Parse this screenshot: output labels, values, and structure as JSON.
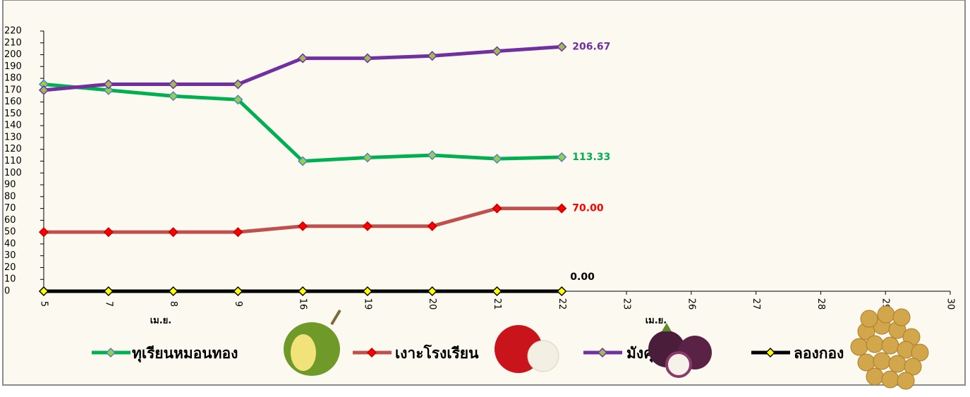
{
  "chart_data": {
    "type": "line",
    "categories": [
      "5",
      "7",
      "8",
      "9",
      "16",
      "19",
      "20",
      "21",
      "22",
      "23",
      "26",
      "27",
      "28",
      "29",
      "30"
    ],
    "x_group_labels": [
      "เม.ย.",
      "เม.ย."
    ],
    "series": [
      {
        "name": "ทุเรียนหมอนทอง",
        "color": "#00b050",
        "marker_color": "#92d050",
        "marker_stroke": "#4f81bd",
        "values": [
          175,
          170,
          165,
          162,
          110,
          113,
          115,
          112,
          113.33,
          null,
          null,
          null,
          null,
          null,
          null
        ],
        "value_labels": [
          null,
          null,
          null,
          null,
          null,
          null,
          null,
          null,
          "113.33",
          null,
          null,
          null,
          null,
          null,
          null
        ]
      },
      {
        "name": "เงาะโรงเรียน",
        "color": "#c0504d",
        "marker_color": "#ff0000",
        "marker_stroke": "#c00000",
        "label_color": "#ff0000",
        "values": [
          50,
          50,
          50,
          50,
          55,
          55,
          55,
          70,
          70,
          null,
          null,
          null,
          null,
          null,
          null
        ],
        "value_labels": [
          null,
          null,
          null,
          null,
          null,
          null,
          null,
          null,
          "70.00",
          null,
          null,
          null,
          null,
          null,
          null
        ]
      },
      {
        "name": "มังคุด",
        "color": "#7030a0",
        "marker_color": "#9bbb59",
        "marker_stroke": "#7030a0",
        "values": [
          170,
          175,
          175,
          175,
          197,
          197,
          199,
          203,
          206.67,
          null,
          null,
          null,
          null,
          null,
          null
        ],
        "value_labels": [
          null,
          null,
          null,
          null,
          null,
          null,
          null,
          null,
          "206.67",
          null,
          null,
          null,
          null,
          null,
          null
        ]
      },
      {
        "name": "ลองกอง",
        "color": "#000000",
        "marker_color": "#ffff00",
        "marker_stroke": "#000000",
        "values": [
          0,
          0,
          0,
          0,
          0,
          0,
          0,
          0,
          0,
          null,
          null,
          null,
          null,
          null,
          null
        ],
        "value_labels": [
          null,
          null,
          null,
          null,
          null,
          null,
          null,
          null,
          "0.00",
          null,
          null,
          null,
          null,
          null,
          null
        ]
      }
    ],
    "ylim": [
      0,
      220
    ],
    "yticks": [
      0,
      10,
      20,
      30,
      40,
      50,
      60,
      70,
      80,
      90,
      100,
      110,
      120,
      130,
      140,
      150,
      160,
      170,
      180,
      190,
      200,
      210,
      220
    ]
  }
}
